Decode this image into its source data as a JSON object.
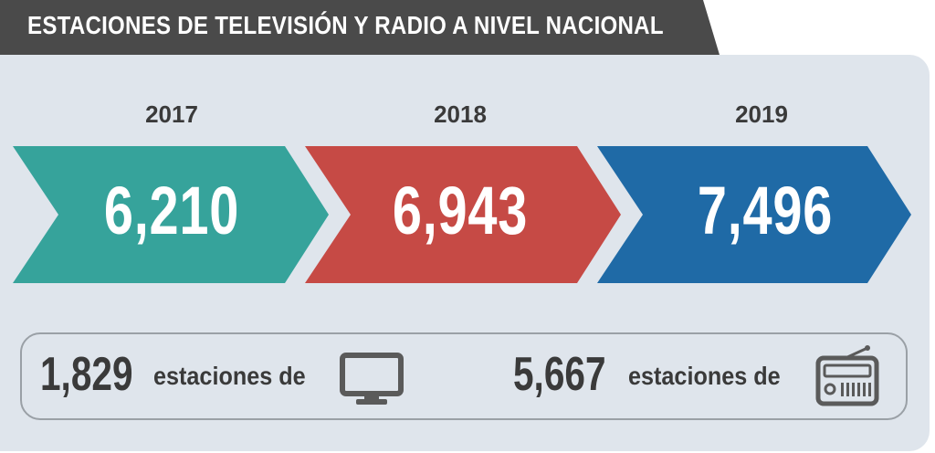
{
  "title": "ESTACIONES DE  TELEVISIÓN Y RADIO A NIVEL NACIONAL",
  "colors": {
    "title_bar": "#4a4a4a",
    "panel": "#dfe5ec",
    "arrow_2017": "#36a39b",
    "arrow_2018": "#c64a45",
    "arrow_2019": "#1f6aa6",
    "text_dark": "#3a3a3a"
  },
  "years": [
    {
      "year": "2017",
      "value": "6,210"
    },
    {
      "year": "2018",
      "value": "6,943"
    },
    {
      "year": "2019",
      "value": "7,496"
    }
  ],
  "summary": {
    "tv": {
      "count": "1,829",
      "label": "estaciones de",
      "icon": "television-icon"
    },
    "radio": {
      "count": "5,667",
      "label": "estaciones de",
      "icon": "radio-icon"
    }
  }
}
